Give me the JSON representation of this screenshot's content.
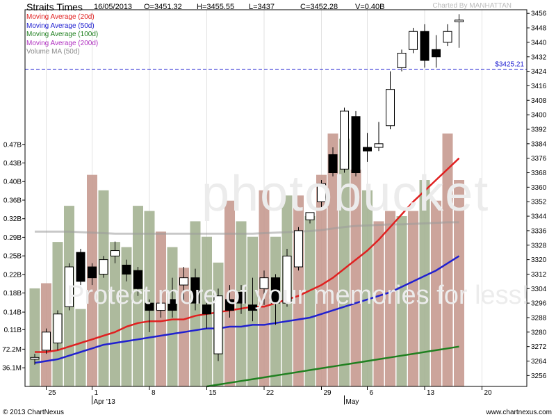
{
  "header": {
    "title": "Straits Times",
    "date": "16/05/2013",
    "open": "O=3451.32",
    "high": "H=3455.55",
    "low": "L=3437",
    "close": "C=3452.28",
    "volume": "V=0.40B",
    "charted_by": "Charted By MANHATTAN"
  },
  "legend": [
    {
      "label": "Moving Average (20d)",
      "color": "#e02020"
    },
    {
      "label": "Moving Average (50d)",
      "color": "#2020d0"
    },
    {
      "label": "Moving Average (100d)",
      "color": "#208020"
    },
    {
      "label": "Moving Average (200d)",
      "color": "#b030c0"
    },
    {
      "label": "Volume MA (50d)",
      "color": "#8a8a8a"
    }
  ],
  "footer": {
    "left": "© 2013 ChartNexus",
    "right": "www.chartnexus.com"
  },
  "watermark": {
    "logo": "photobucket",
    "text": "Protect more of your memories for less!"
  },
  "chart_data": {
    "type": "candlestick",
    "price_axis": {
      "ylim": [
        3250,
        3458
      ],
      "ticks": [
        3256,
        3264,
        3272,
        3280,
        3288,
        3296,
        3304,
        3312,
        3320,
        3328,
        3336,
        3344,
        3352,
        3360,
        3368,
        3376,
        3384,
        3392,
        3400,
        3408,
        3416,
        3424,
        3432,
        3440,
        3448,
        3456
      ]
    },
    "volume_axis": {
      "ticks": [
        "36.1M",
        "72.2M",
        "0.11B",
        "0.14B",
        "0.18B",
        "0.22B",
        "0.25B",
        "0.29B",
        "0.32B",
        "0.36B",
        "0.40B",
        "0.43B",
        "0.47B"
      ]
    },
    "x_axis": {
      "ticks": [
        {
          "label": "25",
          "index": 1
        },
        {
          "label": "1",
          "index": 5
        },
        {
          "label": "8",
          "index": 10
        },
        {
          "label": "15",
          "index": 15
        },
        {
          "label": "22",
          "index": 20
        },
        {
          "label": "29",
          "index": 25
        },
        {
          "label": "6",
          "index": 29
        },
        {
          "label": "13",
          "index": 34
        },
        {
          "label": "20",
          "index": 39
        }
      ],
      "month_labels": [
        {
          "label": "Apr '13",
          "index": 5
        },
        {
          "label": "May",
          "index": 27
        }
      ]
    },
    "reference_line": {
      "value": 3425.21,
      "label": "$3425.21"
    },
    "candles": [
      {
        "o": 3265,
        "h": 3268,
        "l": 3262,
        "c": 3266
      },
      {
        "o": 3270,
        "h": 3282,
        "l": 3268,
        "c": 3280
      },
      {
        "o": 3274,
        "h": 3292,
        "l": 3270,
        "c": 3290
      },
      {
        "o": 3294,
        "h": 3318,
        "l": 3292,
        "c": 3316
      },
      {
        "o": 3324,
        "h": 3326,
        "l": 3306,
        "c": 3308
      },
      {
        "o": 3316,
        "h": 3318,
        "l": 3306,
        "c": 3310
      },
      {
        "o": 3312,
        "h": 3322,
        "l": 3310,
        "c": 3320
      },
      {
        "o": 3322,
        "h": 3330,
        "l": 3318,
        "c": 3325
      },
      {
        "o": 3317,
        "h": 3320,
        "l": 3308,
        "c": 3312
      },
      {
        "o": 3314,
        "h": 3316,
        "l": 3300,
        "c": 3304
      },
      {
        "o": 3296,
        "h": 3298,
        "l": 3280,
        "c": 3292
      },
      {
        "o": 3292,
        "h": 3300,
        "l": 3288,
        "c": 3296
      },
      {
        "o": 3298,
        "h": 3310,
        "l": 3288,
        "c": 3292
      },
      {
        "o": 3306,
        "h": 3316,
        "l": 3296,
        "c": 3310
      },
      {
        "o": 3310,
        "h": 3315,
        "l": 3292,
        "c": 3296
      },
      {
        "o": 3295,
        "h": 3300,
        "l": 3282,
        "c": 3290
      },
      {
        "o": 3268,
        "h": 3304,
        "l": 3264,
        "c": 3300
      },
      {
        "o": 3298,
        "h": 3306,
        "l": 3288,
        "c": 3292
      },
      {
        "o": 3302,
        "h": 3306,
        "l": 3290,
        "c": 3296
      },
      {
        "o": 3295,
        "h": 3310,
        "l": 3286,
        "c": 3292
      },
      {
        "o": 3304,
        "h": 3314,
        "l": 3295,
        "c": 3310
      },
      {
        "o": 3310,
        "h": 3312,
        "l": 3284,
        "c": 3296
      },
      {
        "o": 3296,
        "h": 3326,
        "l": 3294,
        "c": 3322
      },
      {
        "o": 3316,
        "h": 3338,
        "l": 3314,
        "c": 3336
      },
      {
        "o": 3342,
        "h": 3346,
        "l": 3340,
        "c": 3346
      },
      {
        "o": 3352,
        "h": 3364,
        "l": 3348,
        "c": 3362
      },
      {
        "o": 3378,
        "h": 3382,
        "l": 3366,
        "c": 3368
      },
      {
        "o": 3370,
        "h": 3404,
        "l": 3368,
        "c": 3402
      },
      {
        "o": 3399,
        "h": 3402,
        "l": 3366,
        "c": 3368
      },
      {
        "o": 3382,
        "h": 3390,
        "l": 3374,
        "c": 3380
      },
      {
        "o": 3382,
        "h": 3396,
        "l": 3380,
        "c": 3384
      },
      {
        "o": 3394,
        "h": 3424,
        "l": 3392,
        "c": 3414
      },
      {
        "o": 3426,
        "h": 3436,
        "l": 3424,
        "c": 3434
      },
      {
        "o": 3436,
        "h": 3448,
        "l": 3434,
        "c": 3446
      },
      {
        "o": 3446,
        "h": 3450,
        "l": 3426,
        "c": 3430
      },
      {
        "o": 3436,
        "h": 3444,
        "l": 3426,
        "c": 3432
      },
      {
        "o": 3440,
        "h": 3450,
        "l": 3438,
        "c": 3446
      },
      {
        "o": 3451.32,
        "h": 3455.55,
        "l": 3437,
        "c": 3452.28
      }
    ],
    "volume_bars": [
      {
        "v": 0.19,
        "up": false
      },
      {
        "v": 0.2,
        "up": true
      },
      {
        "v": 0.28,
        "up": false
      },
      {
        "v": 0.35,
        "up": false
      },
      {
        "v": 0.15,
        "up": false
      },
      {
        "v": 0.41,
        "up": true
      },
      {
        "v": 0.38,
        "up": false
      },
      {
        "v": 0.28,
        "up": false
      },
      {
        "v": 0.27,
        "up": false
      },
      {
        "v": 0.35,
        "up": false
      },
      {
        "v": 0.34,
        "up": false
      },
      {
        "v": 0.3,
        "up": true
      },
      {
        "v": 0.27,
        "up": false
      },
      {
        "v": 0.23,
        "up": true
      },
      {
        "v": 0.32,
        "up": false
      },
      {
        "v": 0.29,
        "up": false
      },
      {
        "v": 0.24,
        "up": false
      },
      {
        "v": 0.36,
        "up": true
      },
      {
        "v": 0.32,
        "up": false
      },
      {
        "v": 0.29,
        "up": false
      },
      {
        "v": 0.38,
        "up": true
      },
      {
        "v": 0.29,
        "up": false
      },
      {
        "v": 0.37,
        "up": false
      },
      {
        "v": 0.37,
        "up": true
      },
      {
        "v": 0.33,
        "up": false
      },
      {
        "v": 0.41,
        "up": true
      },
      {
        "v": 0.49,
        "up": true
      },
      {
        "v": 0.48,
        "up": false
      },
      {
        "v": 0.42,
        "up": true
      },
      {
        "v": 0.38,
        "up": false
      },
      {
        "v": 0.32,
        "up": true
      },
      {
        "v": 0.34,
        "up": true
      },
      {
        "v": 0.33,
        "up": false
      },
      {
        "v": 0.34,
        "up": true
      },
      {
        "v": 0.4,
        "up": false
      },
      {
        "v": 0.36,
        "up": true
      },
      {
        "v": 0.49,
        "up": true
      },
      {
        "v": 0.4,
        "up": true
      }
    ],
    "series": [
      {
        "name": "Moving Average (20d)",
        "color": "#e02020",
        "start": 0,
        "values": [
          3269,
          3269,
          3270,
          3272,
          3274,
          3276,
          3278,
          3280,
          3283,
          3285,
          3286,
          3286,
          3287,
          3287,
          3289,
          3290,
          3291,
          3292,
          3293,
          3294,
          3294,
          3296,
          3298,
          3300,
          3303,
          3306,
          3310,
          3315,
          3320,
          3325,
          3331,
          3338,
          3345,
          3352,
          3358,
          3364,
          3370,
          3376
        ]
      },
      {
        "name": "Moving Average (50d)",
        "color": "#2020d0",
        "start": 0,
        "values": [
          3263,
          3264,
          3265,
          3267,
          3269,
          3271,
          3273,
          3274,
          3275,
          3276,
          3277,
          3278,
          3279,
          3280,
          3281,
          3282,
          3282,
          3283,
          3283,
          3284,
          3284,
          3285,
          3286,
          3287,
          3288,
          3290,
          3292,
          3294,
          3296,
          3298,
          3300,
          3302,
          3305,
          3308,
          3311,
          3314,
          3318,
          3322
        ]
      },
      {
        "name": "Moving Average (100d)",
        "color": "#208020",
        "start": 15,
        "values": [
          3250,
          3251,
          3252,
          3253,
          3254,
          3255,
          3256,
          3257,
          3258,
          3259,
          3260,
          3261,
          3262,
          3263,
          3264,
          3265,
          3266,
          3267,
          3268,
          3269,
          3270,
          3271,
          3272
        ]
      },
      {
        "name": "Volume MA (50d)",
        "color": "#9a9a9a",
        "start": 0,
        "values": [
          0.3,
          0.3,
          0.3,
          0.3,
          0.299,
          0.298,
          0.297,
          0.296,
          0.296,
          0.296,
          0.296,
          0.296,
          0.296,
          0.296,
          0.296,
          0.296,
          0.296,
          0.296,
          0.296,
          0.296,
          0.297,
          0.298,
          0.299,
          0.3,
          0.301,
          0.303,
          0.306,
          0.309,
          0.311,
          0.312,
          0.313,
          0.314,
          0.314,
          0.315,
          0.316,
          0.317,
          0.318,
          0.318
        ]
      }
    ]
  }
}
